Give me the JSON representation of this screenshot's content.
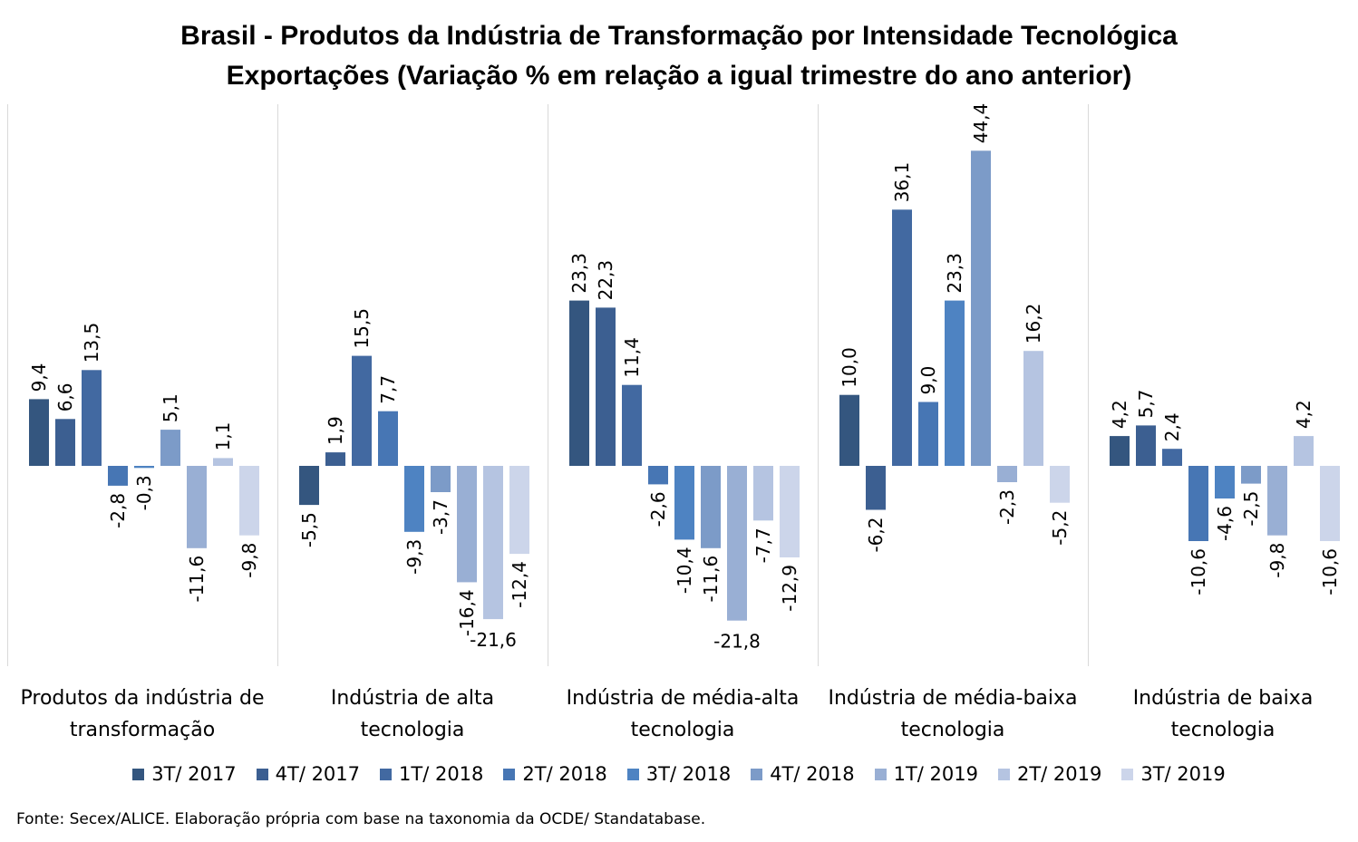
{
  "chart_data": {
    "type": "bar",
    "title": "Brasil - Produtos da Indústria de Transformação por Intensidade Tecnológica",
    "subtitle": "Exportações (Variação % em relação a igual trimestre do ano anterior)",
    "categories": [
      "Produtos da indústria de transformação",
      "Indústria de alta tecnologia",
      "Indústria de média-alta tecnologia",
      "Indústria de média-baixa tecnologia",
      "Indústria de baixa tecnologia"
    ],
    "category_lines": [
      [
        "Produtos da indústria de",
        "transformação"
      ],
      [
        "Indústria de alta",
        "tecnologia"
      ],
      [
        "Indústria de média-alta",
        "tecnologia"
      ],
      [
        "Indústria de média-baixa",
        "tecnologia"
      ],
      [
        "Indústria de baixa",
        "tecnologia"
      ]
    ],
    "series": [
      {
        "name": "3T/ 2017",
        "color": "#34567f",
        "values": [
          9.4,
          -5.5,
          23.3,
          10.0,
          4.2
        ]
      },
      {
        "name": "4T/ 2017",
        "color": "#3c5f91",
        "values": [
          6.6,
          1.9,
          22.3,
          -6.2,
          5.7
        ]
      },
      {
        "name": "1T/ 2018",
        "color": "#4269a1",
        "values": [
          13.5,
          15.5,
          11.4,
          36.1,
          2.4
        ]
      },
      {
        "name": "2T/ 2018",
        "color": "#4776b4",
        "values": [
          -2.8,
          7.7,
          -2.6,
          9.0,
          -10.6
        ]
      },
      {
        "name": "3T/ 2018",
        "color": "#4e83c2",
        "values": [
          -0.3,
          -9.3,
          -10.4,
          23.3,
          -4.6
        ]
      },
      {
        "name": "4T/ 2018",
        "color": "#7c9bc8",
        "values": [
          5.1,
          -3.7,
          -11.6,
          44.4,
          -2.5
        ]
      },
      {
        "name": "1T/ 2019",
        "color": "#99afd4",
        "values": [
          -11.6,
          -16.4,
          -21.8,
          -2.3,
          -9.8
        ]
      },
      {
        "name": "2T/ 2019",
        "color": "#b5c4e1",
        "values": [
          1.1,
          -21.6,
          -7.7,
          16.2,
          4.2
        ]
      },
      {
        "name": "3T/ 2019",
        "color": "#ccd5ea",
        "values": [
          -9.8,
          -12.4,
          -12.9,
          -5.2,
          -10.6
        ]
      }
    ],
    "ylim": [
      -26,
      47
    ],
    "grid": false,
    "legend_position": "bottom",
    "xlabel": "",
    "ylabel": ""
  },
  "source_note": "Fonte: Secex/ALICE. Elaboração própria com base na taxonomia da OCDE/ Standatabase."
}
